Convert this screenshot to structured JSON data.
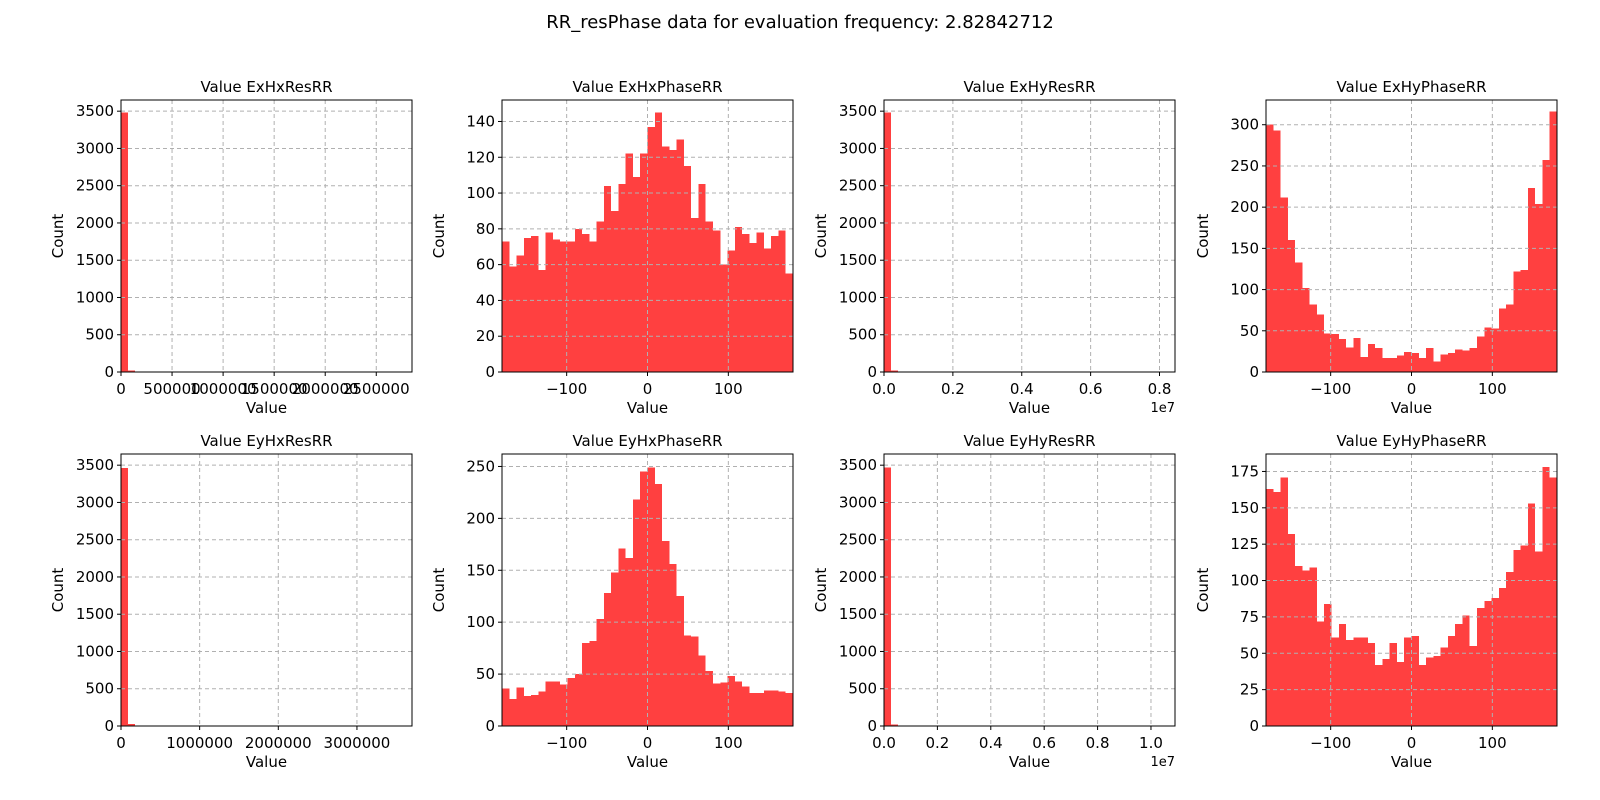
{
  "figure": {
    "title": "RR_resPhase data for evaluation frequency: 2.82842712",
    "bar_color": "#ff4040"
  },
  "chart_data": [
    {
      "type": "bar",
      "title": "Value ExHxResRR",
      "xlabel": "Value",
      "ylabel": "Count",
      "xlim": [
        0,
        2850000
      ],
      "ylim": [
        0,
        3650
      ],
      "xticks": [
        0,
        500000,
        1000000,
        1500000,
        2000000,
        2500000
      ],
      "xtick_labels": [
        "0",
        "500000",
        "1000000",
        "1500000",
        "2000000",
        "2500000"
      ],
      "yticks": [
        0,
        500,
        1000,
        1500,
        2000,
        2500,
        3000,
        3500
      ],
      "x_offset_label": "",
      "grid": true,
      "bins": [
        [
          0,
          68000,
          3480
        ],
        [
          68000,
          136000,
          20
        ],
        [
          136000,
          204000,
          4
        ]
      ]
    },
    {
      "type": "bar",
      "title": "Value ExHxPhaseRR",
      "xlabel": "Value",
      "ylabel": "Count",
      "xlim": [
        -180,
        180
      ],
      "ylim": [
        0,
        152
      ],
      "xticks": [
        -100,
        0,
        100
      ],
      "xtick_labels": [
        "−100",
        "0",
        "100"
      ],
      "yticks": [
        0,
        20,
        40,
        60,
        80,
        100,
        120,
        140
      ],
      "x_offset_label": "",
      "grid": true,
      "bins_start": -180,
      "bin_width": 9,
      "counts": [
        73,
        59,
        65,
        75,
        76,
        57,
        78,
        74,
        73,
        73,
        80,
        77,
        73,
        84,
        104,
        90,
        105,
        122,
        109,
        122,
        137,
        145,
        126,
        124,
        130,
        115,
        86,
        105,
        84,
        79,
        60,
        68,
        81,
        77,
        72,
        78,
        69,
        76,
        79,
        55
      ]
    },
    {
      "type": "bar",
      "title": "Value ExHyResRR",
      "xlabel": "Value",
      "ylabel": "Count",
      "xlim": [
        0,
        8450000
      ],
      "ylim": [
        0,
        3650
      ],
      "xticks": [
        0,
        2000000,
        4000000,
        6000000,
        8000000
      ],
      "xtick_labels": [
        "0.0",
        "0.2",
        "0.4",
        "0.6",
        "0.8"
      ],
      "yticks": [
        0,
        500,
        1000,
        1500,
        2000,
        2500,
        3000,
        3500
      ],
      "x_offset_label": "1e7",
      "grid": true,
      "bins": [
        [
          0,
          200000,
          3480
        ],
        [
          200000,
          400000,
          20
        ],
        [
          400000,
          600000,
          4
        ]
      ]
    },
    {
      "type": "bar",
      "title": "Value ExHyPhaseRR",
      "xlabel": "Value",
      "ylabel": "Count",
      "xlim": [
        -180,
        180
      ],
      "ylim": [
        0,
        330
      ],
      "xticks": [
        -100,
        0,
        100
      ],
      "xtick_labels": [
        "−100",
        "0",
        "100"
      ],
      "yticks": [
        0,
        50,
        100,
        150,
        200,
        250,
        300
      ],
      "x_offset_label": "",
      "grid": true,
      "bins_start": -180,
      "bin_width": 9,
      "counts": [
        300,
        293,
        212,
        160,
        133,
        102,
        82,
        70,
        47,
        46,
        40,
        30,
        41,
        18,
        34,
        29,
        17,
        17,
        20,
        24,
        23,
        17,
        29,
        13,
        21,
        23,
        27,
        26,
        29,
        43,
        54,
        53,
        77,
        82,
        122,
        124,
        223,
        204,
        257,
        316
      ]
    },
    {
      "type": "bar",
      "title": "Value EyHxResRR",
      "xlabel": "Value",
      "ylabel": "Count",
      "xlim": [
        0,
        3700000
      ],
      "ylim": [
        0,
        3650
      ],
      "xticks": [
        0,
        1000000,
        2000000,
        3000000
      ],
      "xtick_labels": [
        "0",
        "1000000",
        "2000000",
        "3000000"
      ],
      "yticks": [
        0,
        500,
        1000,
        1500,
        2000,
        2500,
        3000,
        3500
      ],
      "x_offset_label": "",
      "grid": true,
      "bins": [
        [
          0,
          90000,
          3460
        ],
        [
          90000,
          180000,
          25
        ],
        [
          180000,
          270000,
          10
        ],
        [
          270000,
          360000,
          5
        ],
        [
          360000,
          450000,
          3
        ]
      ]
    },
    {
      "type": "bar",
      "title": "Value EyHxPhaseRR",
      "xlabel": "Value",
      "ylabel": "Count",
      "xlim": [
        -180,
        180
      ],
      "ylim": [
        0,
        262
      ],
      "xticks": [
        -100,
        0,
        100
      ],
      "xtick_labels": [
        "−100",
        "0",
        "100"
      ],
      "yticks": [
        0,
        50,
        100,
        150,
        200,
        250
      ],
      "x_offset_label": "",
      "grid": true,
      "bins_start": -180,
      "bin_width": 9,
      "counts": [
        36,
        26,
        37,
        29,
        30,
        33,
        43,
        43,
        40,
        46,
        50,
        80,
        82,
        103,
        128,
        148,
        171,
        162,
        218,
        245,
        249,
        233,
        178,
        156,
        125,
        87,
        86,
        68,
        53,
        41,
        42,
        48,
        43,
        38,
        32,
        32,
        34,
        34,
        33,
        32
      ]
    },
    {
      "type": "bar",
      "title": "Value EyHyResRR",
      "xlabel": "Value",
      "ylabel": "Count",
      "xlim": [
        0,
        10900000
      ],
      "ylim": [
        0,
        3650
      ],
      "xticks": [
        0,
        2000000,
        4000000,
        6000000,
        8000000,
        10000000
      ],
      "xtick_labels": [
        "0.0",
        "0.2",
        "0.4",
        "0.6",
        "0.8",
        "1.0"
      ],
      "yticks": [
        0,
        500,
        1000,
        1500,
        2000,
        2500,
        3000,
        3500
      ],
      "x_offset_label": "1e7",
      "grid": true,
      "bins": [
        [
          0,
          265000,
          3470
        ],
        [
          265000,
          530000,
          20
        ],
        [
          530000,
          795000,
          8
        ]
      ]
    },
    {
      "type": "bar",
      "title": "Value EyHyPhaseRR",
      "xlabel": "Value",
      "ylabel": "Count",
      "xlim": [
        -180,
        180
      ],
      "ylim": [
        0,
        187
      ],
      "xticks": [
        -100,
        0,
        100
      ],
      "xtick_labels": [
        "−100",
        "0",
        "100"
      ],
      "yticks": [
        0,
        25,
        50,
        75,
        100,
        125,
        150,
        175
      ],
      "x_offset_label": "",
      "grid": true,
      "bins_start": -180,
      "bin_width": 9,
      "counts": [
        163,
        161,
        171,
        132,
        110,
        107,
        109,
        72,
        84,
        61,
        70,
        59,
        61,
        61,
        57,
        42,
        46,
        57,
        44,
        61,
        62,
        42,
        47,
        48,
        54,
        62,
        70,
        76,
        55,
        81,
        86,
        88,
        95,
        106,
        121,
        124,
        153,
        120,
        178,
        171
      ]
    }
  ]
}
